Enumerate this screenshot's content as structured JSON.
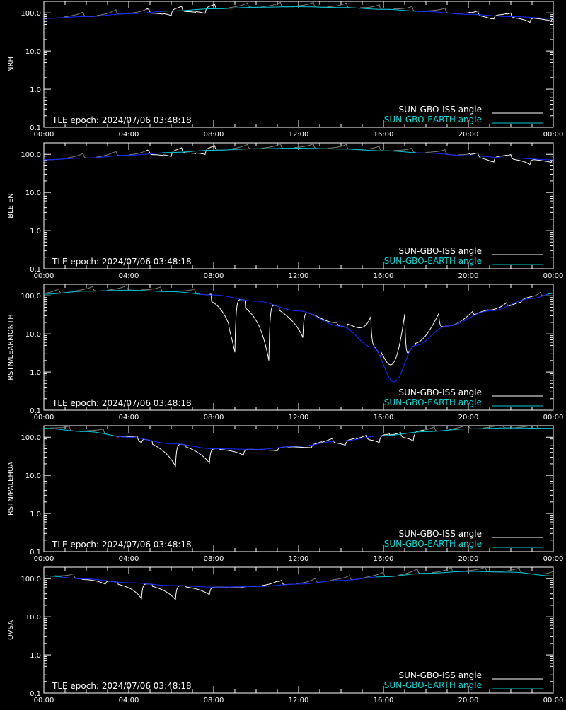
{
  "legend": {
    "iss_label": "SUN-GBO-ISS angle",
    "earth_label": "SUN-GBO-EARTH angle",
    "tle_epoch": "TLE epoch: 2024/07/06 03:48:18"
  },
  "colors": {
    "background": "#000000",
    "axes": "#ffffff",
    "iss_sunlit": "#ffffff",
    "iss_shadow": "#7f7f7f",
    "earth": "#00c8d2",
    "earth_low": "#1a2cff",
    "legend_earth_text": "#00d8d8"
  },
  "chart_data": [
    {
      "type": "line",
      "ylabel": "NRH",
      "yscale": "log",
      "ylim": [
        0.1,
        200
      ],
      "xlim_hours": [
        0,
        24
      ],
      "x_tick_labels": [
        "00:00",
        "04:00",
        "08:00",
        "12:00",
        "16:00",
        "20:00",
        "00:00"
      ],
      "y_tick_labels": [
        "0.1",
        "1.0",
        "10.0",
        "100.0"
      ],
      "earth_angle": {
        "hours": [
          0,
          2,
          4,
          6,
          8,
          10,
          12,
          14,
          16,
          18,
          20,
          22,
          24
        ],
        "deg": [
          72,
          80,
          95,
          112,
          128,
          140,
          145,
          138,
          124,
          108,
          92,
          80,
          72
        ]
      },
      "iss_dips": [
        {
          "hour": 6.0,
          "min": 78
        },
        {
          "hour": 7.6,
          "min": 88
        },
        {
          "hour": 21.2,
          "min": 66
        },
        {
          "hour": 22.9,
          "min": 58
        },
        {
          "hour": 23.9,
          "min": 62
        }
      ],
      "iss_peaks": [
        1.85,
        3.4,
        4.95,
        6.5,
        8.05,
        9.6,
        11.15,
        12.7,
        14.25,
        15.8,
        17.35,
        18.9,
        20.45,
        22.0
      ]
    },
    {
      "type": "line",
      "ylabel": "BLEIEN",
      "yscale": "log",
      "ylim": [
        0.1,
        200
      ],
      "xlim_hours": [
        0,
        24
      ],
      "x_tick_labels": [
        "00:00",
        "04:00",
        "08:00",
        "12:00",
        "16:00",
        "20:00",
        "00:00"
      ],
      "y_tick_labels": [
        "0.1",
        "1.0",
        "10.0",
        "100.0"
      ],
      "earth_angle": {
        "hours": [
          0,
          2,
          4,
          6,
          8,
          10,
          12,
          14,
          16,
          18,
          20,
          22,
          24
        ],
        "deg": [
          72,
          80,
          95,
          112,
          128,
          140,
          145,
          138,
          124,
          108,
          92,
          80,
          72
        ]
      },
      "iss_dips": [
        {
          "hour": 6.0,
          "min": 80
        },
        {
          "hour": 7.6,
          "min": 90
        },
        {
          "hour": 21.2,
          "min": 60
        },
        {
          "hour": 22.9,
          "min": 55
        },
        {
          "hour": 23.9,
          "min": 62
        }
      ],
      "iss_peaks": [
        1.85,
        3.4,
        4.95,
        6.5,
        8.05,
        9.6,
        11.15,
        12.7,
        14.25,
        15.8,
        17.35,
        18.9,
        20.45,
        22.0
      ]
    },
    {
      "type": "line",
      "ylabel": "RSTN/LEARMONTH",
      "yscale": "log",
      "ylim": [
        0.1,
        200
      ],
      "xlim_hours": [
        0,
        24
      ],
      "x_tick_labels": [
        "00:00",
        "04:00",
        "08:00",
        "12:00",
        "16:00",
        "20:00",
        "00:00"
      ],
      "y_tick_labels": [
        "0.1",
        "1.0",
        "10.0",
        "100.0"
      ],
      "earth_angle": {
        "hours": [
          0,
          2,
          4,
          6,
          8,
          10,
          12,
          14,
          15.5,
          16.5,
          17.5,
          19,
          21,
          23,
          24
        ],
        "deg": [
          110,
          132,
          140,
          128,
          105,
          72,
          40,
          16,
          4.5,
          0.55,
          5,
          16,
          40,
          85,
          115
        ]
      },
      "iss_dips": [
        {
          "hour": 9.0,
          "min": 3.3
        },
        {
          "hour": 10.6,
          "min": 2.0
        },
        {
          "hour": 12.2,
          "min": 8.0
        },
        {
          "hour": 13.8,
          "min": 20
        },
        {
          "hour": 15.4,
          "min": 28
        },
        {
          "hour": 17.0,
          "min": 33
        },
        {
          "hour": 18.6,
          "min": 34
        },
        {
          "hour": 20.9,
          "min": 42
        },
        {
          "hour": 22.5,
          "min": 68
        }
      ],
      "iss_peaks": [
        0.7,
        2.3,
        3.9,
        5.5,
        7.1,
        8.7,
        20.2,
        21.8,
        23.4
      ]
    },
    {
      "type": "line",
      "ylabel": "RSTN/PALEHUA",
      "yscale": "log",
      "ylim": [
        0.1,
        200
      ],
      "xlim_hours": [
        0,
        24
      ],
      "x_tick_labels": [
        "00:00",
        "04:00",
        "08:00",
        "12:00",
        "16:00",
        "20:00",
        "00:00"
      ],
      "y_tick_labels": [
        "0.1",
        "1.0",
        "10.0",
        "100.0"
      ],
      "earth_angle": {
        "hours": [
          0,
          2,
          4,
          6,
          8,
          10,
          12,
          14,
          16,
          18,
          20,
          22,
          24
        ],
        "deg": [
          170,
          140,
          100,
          68,
          50,
          48,
          58,
          80,
          110,
          140,
          165,
          175,
          170
        ]
      },
      "iss_dips": [
        {
          "hour": 4.6,
          "min": 72
        },
        {
          "hour": 6.2,
          "min": 17
        },
        {
          "hour": 7.8,
          "min": 21
        },
        {
          "hour": 9.4,
          "min": 34
        },
        {
          "hour": 11.0,
          "min": 44
        },
        {
          "hour": 12.6,
          "min": 53
        },
        {
          "hour": 14.2,
          "min": 62
        },
        {
          "hour": 15.8,
          "min": 72
        },
        {
          "hour": 17.4,
          "min": 80
        }
      ],
      "iss_peaks": [
        1.2,
        2.8,
        4.4,
        13.6,
        15.2,
        16.8,
        18.4,
        20.0,
        21.6,
        23.2
      ]
    },
    {
      "type": "line",
      "ylabel": "OVSA",
      "yscale": "log",
      "ylim": [
        0.1,
        200
      ],
      "xlim_hours": [
        0,
        24
      ],
      "x_tick_labels": [
        "00:00",
        "04:00",
        "08:00",
        "12:00",
        "16:00",
        "20:00",
        "00:00"
      ],
      "y_tick_labels": [
        "0.1",
        "1.0",
        "10.0",
        "100.0"
      ],
      "earth_angle": {
        "hours": [
          0,
          2,
          4,
          6,
          8,
          10,
          12,
          14,
          16,
          18,
          20,
          22,
          24
        ],
        "deg": [
          118,
          98,
          78,
          66,
          60,
          62,
          72,
          90,
          112,
          138,
          155,
          148,
          118
        ]
      },
      "iss_dips": [
        {
          "hour": 2.9,
          "min": 72
        },
        {
          "hour": 4.6,
          "min": 30
        },
        {
          "hour": 6.2,
          "min": 28
        },
        {
          "hour": 7.8,
          "min": 38
        },
        {
          "hour": 9.4,
          "min": 60
        },
        {
          "hour": 11.0,
          "min": 72
        }
      ],
      "iss_peaks": [
        1.4,
        11.2,
        12.8,
        14.4,
        16.0,
        17.6,
        19.2,
        20.8,
        22.4,
        24.0
      ]
    }
  ]
}
